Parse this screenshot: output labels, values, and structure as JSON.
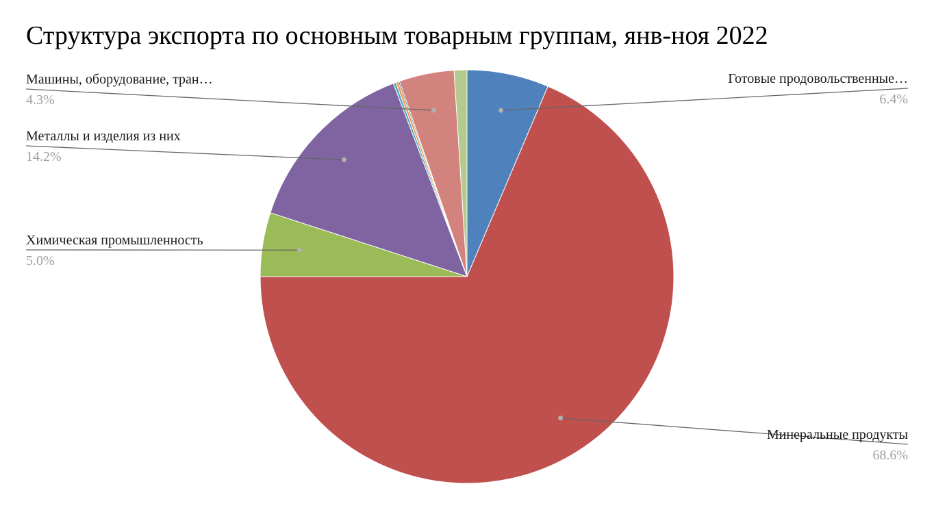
{
  "chart_data": {
    "type": "pie",
    "title": "Структура экспорта по основным товарным группам, янв-ноя 2022",
    "start_angle_deg": 0,
    "direction": "clockwise",
    "slices": [
      {
        "label": "Готовые продовольственные…",
        "value": 6.4,
        "value_label": "6.4%",
        "color": "#4f81bd",
        "show_label": true,
        "label_side": "right"
      },
      {
        "label": "Минеральные продукты",
        "value": 68.6,
        "value_label": "68.6%",
        "color": "#c0504d",
        "show_label": true,
        "label_side": "right"
      },
      {
        "label": "Химическая промышленность",
        "value": 5.0,
        "value_label": "5.0%",
        "color": "#9bbb59",
        "show_label": true,
        "label_side": "left"
      },
      {
        "label": "Металлы и изделия из них",
        "value": 14.2,
        "value_label": "14.2%",
        "color": "#8064a2",
        "show_label": true,
        "label_side": "left"
      },
      {
        "label": "",
        "value": 0.2,
        "value_label": "",
        "color": "#4bacc6",
        "show_label": false
      },
      {
        "label": "",
        "value": 0.2,
        "value_label": "",
        "color": "#f79646",
        "show_label": false
      },
      {
        "label": "",
        "value": 0.1,
        "value_label": "",
        "color": "#2c4d75",
        "show_label": false
      },
      {
        "label": "Машины, оборудование, тран…",
        "value": 4.3,
        "value_label": "4.3%",
        "color": "#d3837e",
        "show_label": true,
        "label_side": "left"
      },
      {
        "label": "",
        "value": 1.0,
        "value_label": "",
        "color": "#b5ca8e",
        "show_label": false
      }
    ],
    "legend": "none"
  }
}
